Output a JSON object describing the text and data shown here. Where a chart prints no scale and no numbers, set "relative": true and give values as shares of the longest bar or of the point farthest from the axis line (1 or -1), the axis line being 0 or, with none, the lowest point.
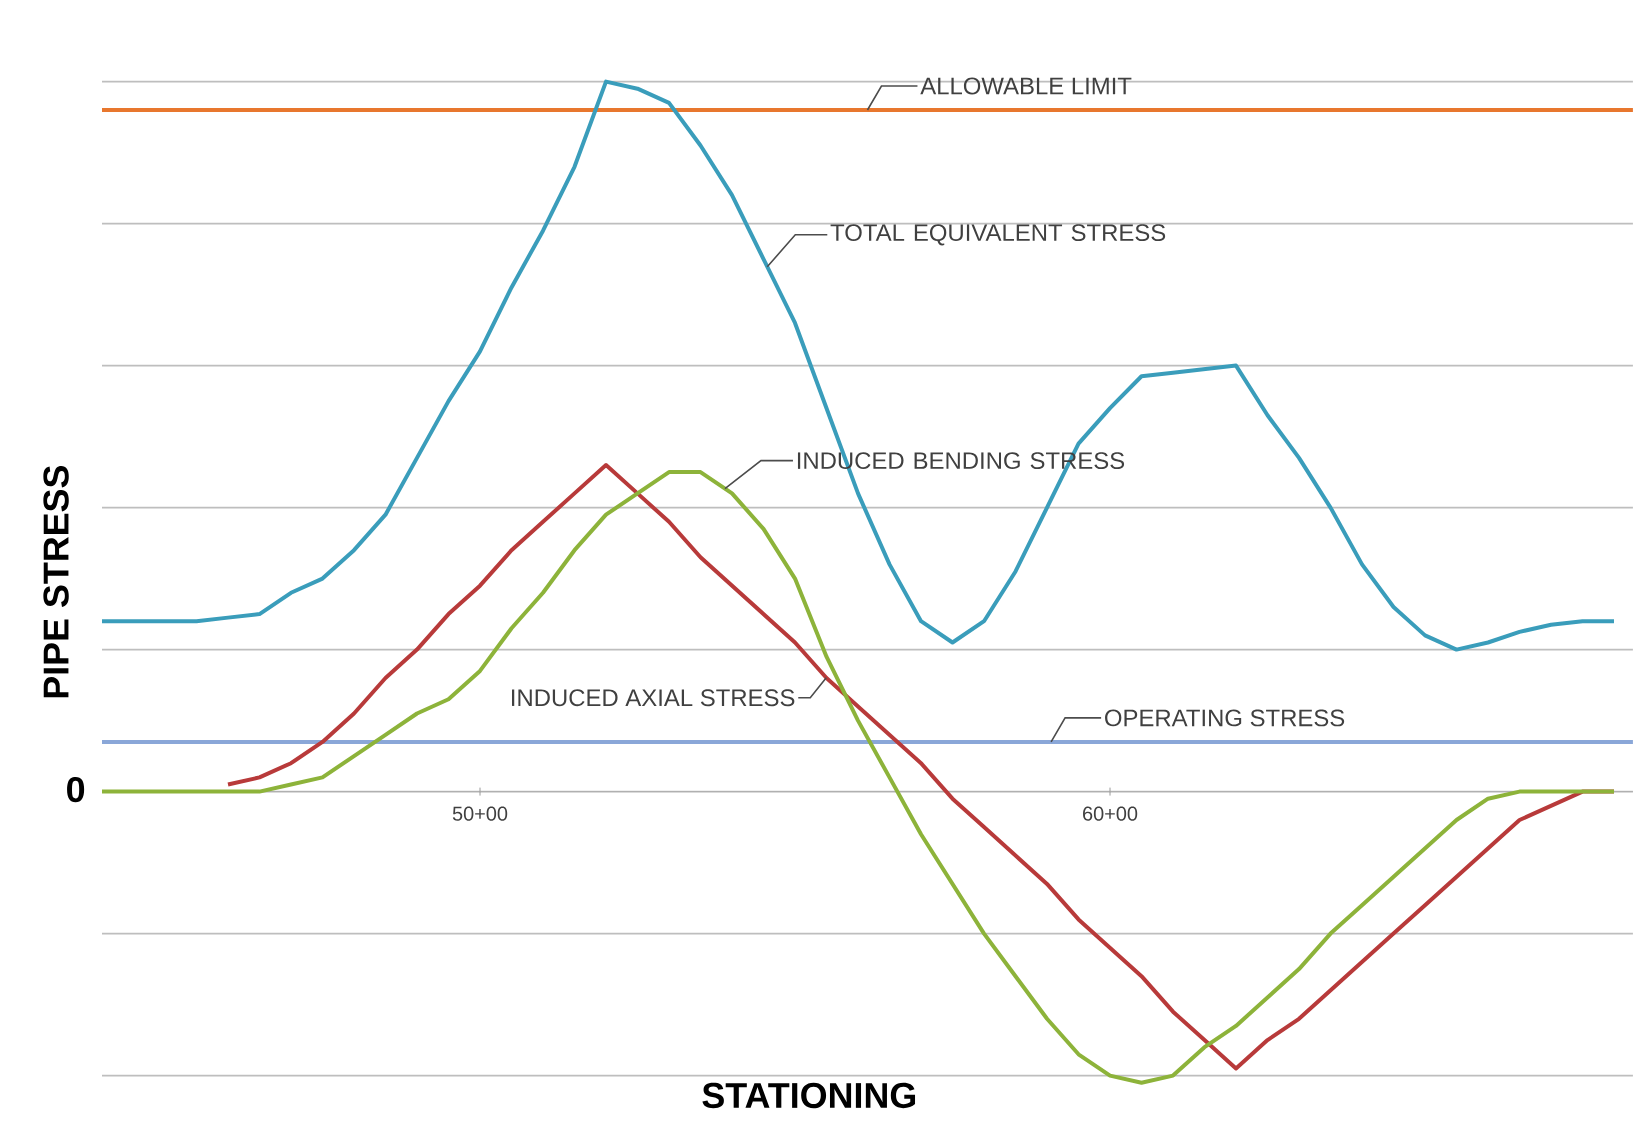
{
  "chart_data": {
    "type": "line",
    "relative": true,
    "xlabel": "STATIONING",
    "ylabel": "PIPE STRESS",
    "categories": [
      null,
      null,
      null,
      null,
      null,
      null,
      null,
      null,
      null,
      null,
      null,
      null,
      "50+00",
      null,
      null,
      null,
      null,
      null,
      null,
      null,
      null,
      null,
      null,
      null,
      null,
      null,
      null,
      null,
      null,
      null,
      null,
      null,
      "60+00",
      null,
      null,
      null,
      null,
      null,
      null,
      null,
      null,
      null,
      null,
      null,
      null,
      null,
      null,
      null,
      null
    ],
    "grid": "y",
    "marker": "none",
    "line_style": "solid",
    "series": [
      {
        "name": "TOTAL EQUIVALENT STRESS",
        "color": "#3a9dbb",
        "values": [
          0.24,
          0.24,
          0.24,
          0.24,
          0.245,
          0.25,
          0.28,
          0.3,
          0.34,
          0.39,
          0.47,
          0.55,
          0.62,
          0.71,
          0.79,
          0.88,
          1,
          0.99,
          0.97,
          0.91,
          0.84,
          0.75,
          0.66,
          0.54,
          0.42,
          0.32,
          0.24,
          0.21,
          0.24,
          0.31,
          0.4,
          0.49,
          0.54,
          0.585,
          0.59,
          0.595,
          0.6,
          0.53,
          0.47,
          0.4,
          0.32,
          0.26,
          0.22,
          0.2,
          0.21,
          0.225,
          0.235,
          0.24,
          0.24
        ]
      },
      {
        "name": "INDUCED AXIAL STRESS",
        "color": "#b83a3a",
        "values": [
          null,
          null,
          null,
          null,
          0.01,
          0.02,
          0.04,
          0.07,
          0.11,
          0.16,
          0.2,
          0.25,
          0.29,
          0.34,
          0.38,
          0.42,
          0.46,
          0.42,
          0.38,
          0.33,
          0.29,
          0.25,
          0.21,
          0.16,
          0.12,
          0.08,
          0.04,
          -0.01,
          -0.05,
          -0.09,
          -0.13,
          -0.18,
          -0.22,
          -0.26,
          -0.31,
          -0.35,
          -0.39,
          -0.35,
          -0.32,
          -0.28,
          -0.24,
          -0.2,
          -0.16,
          -0.12,
          -0.08,
          -0.04,
          -0.02,
          0,
          0
        ]
      },
      {
        "name": "INDUCED BENDING STRESS",
        "color": "#8db33a",
        "values": [
          0,
          0,
          0,
          0,
          0,
          0,
          0.01,
          0.02,
          0.05,
          0.08,
          0.11,
          0.13,
          0.17,
          0.23,
          0.28,
          0.34,
          0.39,
          0.42,
          0.45,
          0.45,
          0.42,
          0.37,
          0.3,
          0.19,
          0.1,
          0.02,
          -0.06,
          -0.13,
          -0.2,
          -0.26,
          -0.32,
          -0.37,
          -0.4,
          -0.41,
          -0.4,
          -0.36,
          -0.33,
          -0.29,
          -0.25,
          -0.2,
          -0.16,
          -0.12,
          -0.08,
          -0.04,
          -0.01,
          0,
          0,
          0,
          0
        ]
      }
    ],
    "ref_lines": [
      {
        "axis": "y",
        "value": 0.96,
        "label": "ALLOWABLE LIMIT",
        "color": "#e8772e"
      },
      {
        "axis": "y",
        "value": 0.07,
        "label": "OPERATING STRESS",
        "color": "#8aa7d8"
      }
    ],
    "annotations": [
      "0"
    ]
  }
}
